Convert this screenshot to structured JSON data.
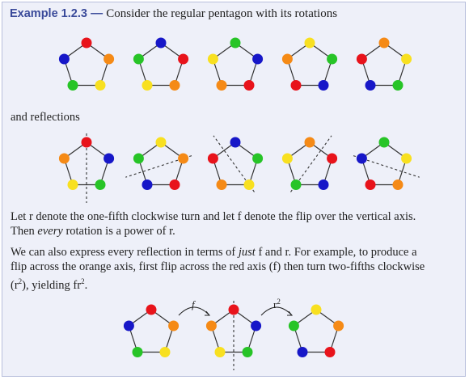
{
  "header": {
    "label": "Example 1.2.3",
    "dash": " — ",
    "intro": "Consider the regular pentagon with its rotations"
  },
  "reflections_intro": "and reflections",
  "para1": {
    "line1": "Let r denote the one-fifth clockwise turn and let f denote the flip over the vertical axis.",
    "line2_pre": "Then ",
    "line2_em": "every",
    "line2_post": " rotation is a power of r."
  },
  "para2": {
    "line1_pre": "We can also express every reflection in terms of ",
    "line1_em": "just",
    "line1_post": " f and r. For example, to produce a",
    "line2": "flip across the orange axis, first flip across the red axis (f) then turn two-fifths clockwise",
    "line3_a": "(r",
    "line3_sup": "2",
    "line3_b": "), yielding fr",
    "line3_sup2": "2",
    "line3_c": "."
  },
  "bottom": {
    "arrow1_label": "f",
    "arrow2_label": "r",
    "arrow2_sup": "2"
  },
  "colors": {
    "red": "#e8131b",
    "blue": "#1717c8",
    "orange": "#f58a16",
    "green": "#27c427",
    "yellow": "#f8e020",
    "accent": "#3a4a9a"
  },
  "rotations": [
    [
      "red",
      "orange",
      "yellow",
      "green",
      "blue"
    ],
    [
      "blue",
      "red",
      "orange",
      "yellow",
      "green"
    ],
    [
      "green",
      "blue",
      "red",
      "orange",
      "yellow"
    ],
    [
      "yellow",
      "green",
      "blue",
      "red",
      "orange"
    ],
    [
      "orange",
      "yellow",
      "green",
      "blue",
      "red"
    ]
  ],
  "reflections": [
    [
      "red",
      "blue",
      "green",
      "yellow",
      "orange"
    ],
    [
      "yellow",
      "orange",
      "red",
      "blue",
      "green"
    ],
    [
      "blue",
      "green",
      "yellow",
      "orange",
      "red"
    ],
    [
      "orange",
      "red",
      "blue",
      "green",
      "yellow"
    ],
    [
      "green",
      "yellow",
      "orange",
      "red",
      "blue"
    ]
  ],
  "bottom_pentagons": [
    [
      "red",
      "orange",
      "yellow",
      "green",
      "blue"
    ],
    [
      "red",
      "blue",
      "green",
      "yellow",
      "orange"
    ],
    [
      "yellow",
      "orange",
      "red",
      "blue",
      "green"
    ]
  ]
}
